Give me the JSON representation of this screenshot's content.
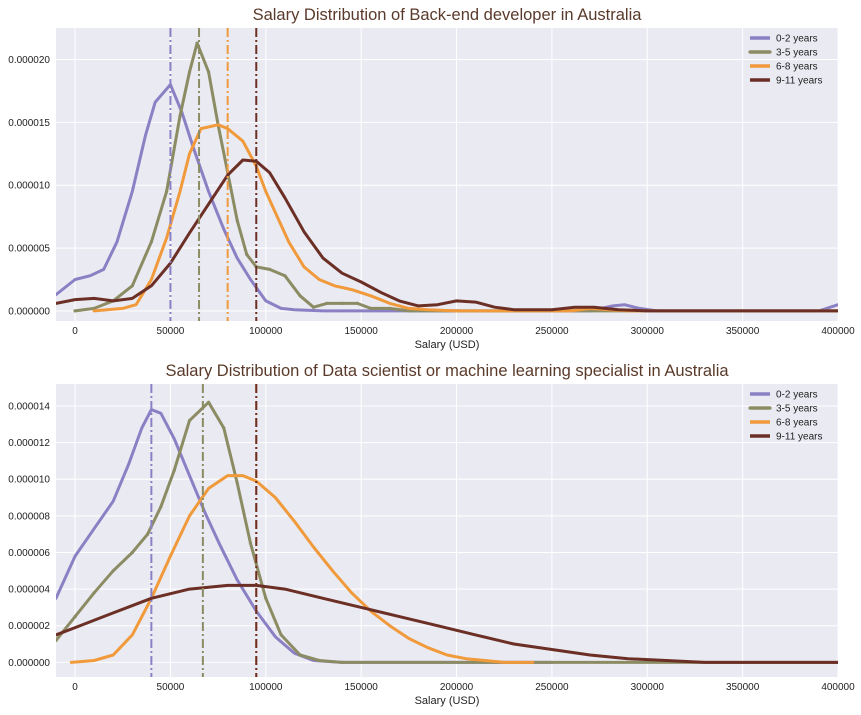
{
  "chart_data": [
    {
      "type": "line",
      "title": "Salary Distribution of Back-end developer in Australia",
      "xlabel": "Salary (USD)",
      "ylabel": "",
      "xlim": [
        -10000,
        400000
      ],
      "ylim": [
        -8e-07,
        2.25e-05
      ],
      "xticks": [
        0,
        50000,
        100000,
        150000,
        200000,
        250000,
        300000,
        350000,
        400000
      ],
      "xtick_labels": [
        "0",
        "50000",
        "100000",
        "150000",
        "200000",
        "250000",
        "300000",
        "350000",
        "400000"
      ],
      "yticks": [
        0,
        5e-06,
        1e-05,
        1.5e-05,
        2e-05
      ],
      "ytick_labels": [
        "0.000000",
        "0.000005",
        "0.000010",
        "0.000015",
        "0.000020"
      ],
      "grid": true,
      "legend_position": "top-right",
      "series": [
        {
          "name": "0-2 years",
          "color": "#8b80c4",
          "marker": false,
          "median": 50000,
          "points": [
            [
              -10000,
              1.3e-06
            ],
            [
              0,
              2.5e-06
            ],
            [
              8000,
              2.8e-06
            ],
            [
              15000,
              3.3e-06
            ],
            [
              22000,
              5.5e-06
            ],
            [
              30000,
              9.5e-06
            ],
            [
              37000,
              1.4e-05
            ],
            [
              42000,
              1.66e-05
            ],
            [
              50000,
              1.8e-05
            ],
            [
              56000,
              1.58e-05
            ],
            [
              62000,
              1.3e-05
            ],
            [
              70000,
              9.5e-06
            ],
            [
              78000,
              6.5e-06
            ],
            [
              85000,
              4.2e-06
            ],
            [
              92000,
              2.5e-06
            ],
            [
              100000,
              8e-07
            ],
            [
              108000,
              2e-07
            ],
            [
              115000,
              1e-07
            ],
            [
              130000,
              0
            ],
            [
              200000,
              0
            ],
            [
              270000,
              0
            ],
            [
              282000,
              4e-07
            ],
            [
              288000,
              5e-07
            ],
            [
              296000,
              2e-07
            ],
            [
              305000,
              0
            ],
            [
              390000,
              0
            ],
            [
              400000,
              5e-07
            ]
          ]
        },
        {
          "name": "3-5 years",
          "color": "#8c8c64",
          "marker": true,
          "median": 65000,
          "points": [
            [
              0,
              0
            ],
            [
              10000,
              2e-07
            ],
            [
              20000,
              8e-07
            ],
            [
              30000,
              2e-06
            ],
            [
              40000,
              5.5e-06
            ],
            [
              48000,
              9.5e-06
            ],
            [
              55000,
              1.55e-05
            ],
            [
              60000,
              1.9e-05
            ],
            [
              64000,
              2.13e-05
            ],
            [
              70000,
              1.9e-05
            ],
            [
              75000,
              1.48e-05
            ],
            [
              80000,
              1.1e-05
            ],
            [
              85000,
              7.2e-06
            ],
            [
              90000,
              4.5e-06
            ],
            [
              95000,
              3.5e-06
            ],
            [
              102000,
              3.3e-06
            ],
            [
              110000,
              2.8e-06
            ],
            [
              118000,
              1.2e-06
            ],
            [
              125000,
              3e-07
            ],
            [
              132000,
              6e-07
            ],
            [
              140000,
              6e-07
            ],
            [
              148000,
              6e-07
            ],
            [
              155000,
              2e-07
            ],
            [
              165000,
              2e-07
            ],
            [
              175000,
              0
            ],
            [
              200000,
              0
            ],
            [
              400000,
              0
            ]
          ]
        },
        {
          "name": "6-8 years",
          "color": "#f09a3c",
          "marker": false,
          "median": 80000,
          "points": [
            [
              10000,
              0
            ],
            [
              25000,
              2e-07
            ],
            [
              32000,
              5e-07
            ],
            [
              40000,
              2.5e-06
            ],
            [
              48000,
              5.8e-06
            ],
            [
              55000,
              9.5e-06
            ],
            [
              60000,
              1.25e-05
            ],
            [
              66000,
              1.45e-05
            ],
            [
              75000,
              1.48e-05
            ],
            [
              80000,
              1.45e-05
            ],
            [
              88000,
              1.35e-05
            ],
            [
              95000,
              1.15e-05
            ],
            [
              100000,
              9.5e-06
            ],
            [
              106000,
              7.5e-06
            ],
            [
              112000,
              5.5e-06
            ],
            [
              120000,
              3.5e-06
            ],
            [
              128000,
              2.5e-06
            ],
            [
              136000,
              2e-06
            ],
            [
              145000,
              1.7e-06
            ],
            [
              155000,
              1.2e-06
            ],
            [
              165000,
              6e-07
            ],
            [
              175000,
              2e-07
            ],
            [
              185000,
              1e-07
            ],
            [
              200000,
              0
            ],
            [
              260000,
              0
            ],
            [
              270000,
              2e-07
            ],
            [
              280000,
              1e-07
            ],
            [
              290000,
              0
            ],
            [
              400000,
              0
            ]
          ]
        },
        {
          "name": "9-11 years",
          "color": "#6b2f25",
          "marker": false,
          "median": 95000,
          "points": [
            [
              -10000,
              6e-07
            ],
            [
              0,
              9e-07
            ],
            [
              10000,
              1e-06
            ],
            [
              20000,
              8e-07
            ],
            [
              30000,
              1e-06
            ],
            [
              40000,
              2e-06
            ],
            [
              50000,
              3.8e-06
            ],
            [
              60000,
              6.2e-06
            ],
            [
              70000,
              8.5e-06
            ],
            [
              80000,
              1.08e-05
            ],
            [
              88000,
              1.2e-05
            ],
            [
              95000,
              1.19e-05
            ],
            [
              102000,
              1.1e-05
            ],
            [
              110000,
              9e-06
            ],
            [
              120000,
              6.3e-06
            ],
            [
              130000,
              4.2e-06
            ],
            [
              140000,
              3e-06
            ],
            [
              150000,
              2.3e-06
            ],
            [
              160000,
              1.5e-06
            ],
            [
              170000,
              8e-07
            ],
            [
              180000,
              4e-07
            ],
            [
              190000,
              5e-07
            ],
            [
              200000,
              8e-07
            ],
            [
              210000,
              7e-07
            ],
            [
              220000,
              3e-07
            ],
            [
              230000,
              1e-07
            ],
            [
              250000,
              1e-07
            ],
            [
              262000,
              3e-07
            ],
            [
              272000,
              3e-07
            ],
            [
              285000,
              1e-07
            ],
            [
              300000,
              0
            ],
            [
              400000,
              0
            ]
          ]
        }
      ]
    },
    {
      "type": "line",
      "title": "Salary Distribution of Data scientist or machine learning specialist in Australia",
      "xlabel": "Salary (USD)",
      "ylabel": "",
      "xlim": [
        -10000,
        400000
      ],
      "ylim": [
        -8e-07,
        1.52e-05
      ],
      "xticks": [
        0,
        50000,
        100000,
        150000,
        200000,
        250000,
        300000,
        350000,
        400000
      ],
      "xtick_labels": [
        "0",
        "50000",
        "100000",
        "150000",
        "200000",
        "250000",
        "300000",
        "350000",
        "400000"
      ],
      "yticks": [
        0,
        2e-06,
        4e-06,
        6e-06,
        8e-06,
        1e-05,
        1.2e-05,
        1.4e-05
      ],
      "ytick_labels": [
        "0.000000",
        "0.000002",
        "0.000004",
        "0.000006",
        "0.000008",
        "0.000010",
        "0.000012",
        "0.000014"
      ],
      "grid": true,
      "legend_position": "top-right",
      "series": [
        {
          "name": "0-2 years",
          "color": "#8b80c4",
          "marker": false,
          "median": 40000,
          "points": [
            [
              -10000,
              3.5e-06
            ],
            [
              0,
              5.8e-06
            ],
            [
              10000,
              7.3e-06
            ],
            [
              20000,
              8.8e-06
            ],
            [
              28000,
              1.08e-05
            ],
            [
              35000,
              1.28e-05
            ],
            [
              40000,
              1.38e-05
            ],
            [
              45000,
              1.36e-05
            ],
            [
              52000,
              1.22e-05
            ],
            [
              60000,
              1.02e-05
            ],
            [
              68000,
              8.2e-06
            ],
            [
              76000,
              6.4e-06
            ],
            [
              85000,
              4.5e-06
            ],
            [
              95000,
              2.8e-06
            ],
            [
              105000,
              1.4e-06
            ],
            [
              115000,
              5e-07
            ],
            [
              125000,
              1e-07
            ],
            [
              140000,
              0
            ],
            [
              250000,
              0
            ]
          ]
        },
        {
          "name": "3-5 years",
          "color": "#8c8c64",
          "marker": true,
          "median": 67000,
          "points": [
            [
              -10000,
              1.2e-06
            ],
            [
              0,
              2.5e-06
            ],
            [
              10000,
              3.8e-06
            ],
            [
              20000,
              5e-06
            ],
            [
              30000,
              6e-06
            ],
            [
              38000,
              7e-06
            ],
            [
              45000,
              8.5e-06
            ],
            [
              52000,
              1.05e-05
            ],
            [
              60000,
              1.32e-05
            ],
            [
              70000,
              1.42e-05
            ],
            [
              78000,
              1.28e-05
            ],
            [
              85000,
              9.8e-06
            ],
            [
              92000,
              6.5e-06
            ],
            [
              100000,
              3.5e-06
            ],
            [
              108000,
              1.5e-06
            ],
            [
              118000,
              4e-07
            ],
            [
              128000,
              1e-07
            ],
            [
              140000,
              0
            ],
            [
              400000,
              0
            ]
          ]
        },
        {
          "name": "6-8 years",
          "color": "#f09a3c",
          "marker": false,
          "median": 95000,
          "points": [
            [
              -2000,
              0
            ],
            [
              10000,
              1e-07
            ],
            [
              20000,
              4e-07
            ],
            [
              30000,
              1.5e-06
            ],
            [
              40000,
              3.5e-06
            ],
            [
              50000,
              5.8e-06
            ],
            [
              60000,
              8e-06
            ],
            [
              70000,
              9.5e-06
            ],
            [
              80000,
              1.02e-05
            ],
            [
              88000,
              1.02e-05
            ],
            [
              95000,
              9.9e-06
            ],
            [
              105000,
              9e-06
            ],
            [
              115000,
              7.7e-06
            ],
            [
              125000,
              6.3e-06
            ],
            [
              135000,
              5e-06
            ],
            [
              145000,
              3.8e-06
            ],
            [
              155000,
              2.8e-06
            ],
            [
              165000,
              2e-06
            ],
            [
              175000,
              1.3e-06
            ],
            [
              185000,
              8e-07
            ],
            [
              195000,
              4e-07
            ],
            [
              205000,
              2e-07
            ],
            [
              215000,
              1e-07
            ],
            [
              225000,
              0
            ],
            [
              240000,
              0
            ]
          ]
        },
        {
          "name": "9-11 years",
          "color": "#6b2f25",
          "marker": false,
          "median": 95000,
          "points": [
            [
              -10000,
              1.5e-06
            ],
            [
              0,
              1.9e-06
            ],
            [
              20000,
              2.7e-06
            ],
            [
              40000,
              3.5e-06
            ],
            [
              60000,
              4e-06
            ],
            [
              80000,
              4.2e-06
            ],
            [
              95000,
              4.2e-06
            ],
            [
              110000,
              4e-06
            ],
            [
              130000,
              3.5e-06
            ],
            [
              150000,
              3e-06
            ],
            [
              170000,
              2.5e-06
            ],
            [
              190000,
              2e-06
            ],
            [
              210000,
              1.5e-06
            ],
            [
              230000,
              1e-06
            ],
            [
              250000,
              7e-07
            ],
            [
              270000,
              4e-07
            ],
            [
              290000,
              2e-07
            ],
            [
              310000,
              1e-07
            ],
            [
              330000,
              0
            ],
            [
              400000,
              0
            ]
          ]
        }
      ]
    }
  ]
}
